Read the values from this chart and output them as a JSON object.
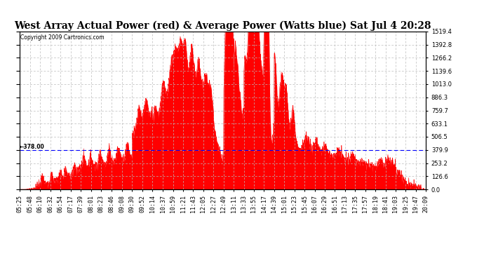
{
  "title": "West Array Actual Power (red) & Average Power (Watts blue) Sat Jul 4 20:28",
  "copyright": "Copyright 2009 Cartronics.com",
  "average_power": 378.0,
  "y_max": 1519.4,
  "y_min": 0.0,
  "y_ticks_right": [
    0.0,
    126.6,
    253.2,
    379.9,
    506.5,
    633.1,
    759.7,
    886.3,
    1013.0,
    1139.6,
    1266.2,
    1392.8,
    1519.4
  ],
  "fill_color": "#FF0000",
  "line_color": "#FF0000",
  "avg_line_color": "#0000FF",
  "background_color": "#FFFFFF",
  "grid_color": "#BBBBBB",
  "title_fontsize": 10,
  "tick_fontsize": 6,
  "x_tick_labels": [
    "05:25",
    "05:48",
    "06:10",
    "06:32",
    "06:54",
    "07:17",
    "07:39",
    "08:01",
    "08:23",
    "08:46",
    "09:08",
    "09:30",
    "09:52",
    "10:14",
    "10:37",
    "10:59",
    "11:21",
    "11:43",
    "12:05",
    "12:27",
    "12:49",
    "13:11",
    "13:33",
    "13:55",
    "14:17",
    "14:39",
    "15:01",
    "15:23",
    "15:45",
    "16:07",
    "16:29",
    "16:51",
    "17:13",
    "17:35",
    "17:57",
    "18:19",
    "18:41",
    "19:03",
    "19:25",
    "19:47",
    "20:09"
  ]
}
